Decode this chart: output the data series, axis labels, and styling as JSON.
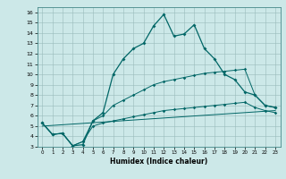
{
  "xlabel": "Humidex (Indice chaleur)",
  "bg_color": "#cce8e8",
  "line_color": "#006666",
  "xlim": [
    -0.5,
    23.5
  ],
  "ylim": [
    3,
    16.5
  ],
  "xticks": [
    0,
    1,
    2,
    3,
    4,
    5,
    6,
    7,
    8,
    9,
    10,
    11,
    12,
    13,
    14,
    15,
    16,
    17,
    18,
    19,
    20,
    21,
    22,
    23
  ],
  "yticks": [
    3,
    4,
    5,
    6,
    7,
    8,
    9,
    10,
    11,
    12,
    13,
    14,
    15,
    16
  ],
  "main_line_x": [
    0,
    1,
    2,
    3,
    4,
    5,
    6,
    7,
    8,
    9,
    10,
    11,
    12,
    13,
    14,
    15,
    16,
    17,
    18,
    19,
    20,
    21,
    22,
    23
  ],
  "main_line_y": [
    5.3,
    4.2,
    4.3,
    3.1,
    3.2,
    5.5,
    6.3,
    10.0,
    11.5,
    12.5,
    13.0,
    14.7,
    15.8,
    13.7,
    13.9,
    14.8,
    12.5,
    11.5,
    10.0,
    9.5,
    8.3,
    8.0,
    7.0,
    6.8
  ],
  "upper_line_x": [
    0,
    1,
    2,
    3,
    4,
    5,
    6,
    7,
    8,
    9,
    10,
    11,
    12,
    13,
    14,
    15,
    16,
    17,
    18,
    19,
    20,
    21,
    22,
    23
  ],
  "upper_line_y": [
    5.3,
    4.2,
    4.3,
    3.1,
    3.5,
    5.5,
    6.0,
    7.0,
    7.5,
    8.0,
    8.5,
    9.0,
    9.3,
    9.5,
    9.7,
    9.9,
    10.1,
    10.2,
    10.3,
    10.4,
    10.5,
    8.0,
    7.0,
    6.8
  ],
  "lower_line_x": [
    0,
    1,
    2,
    3,
    4,
    5,
    6,
    7,
    8,
    9,
    10,
    11,
    12,
    13,
    14,
    15,
    16,
    17,
    18,
    19,
    20,
    21,
    22,
    23
  ],
  "lower_line_y": [
    5.3,
    4.2,
    4.3,
    3.1,
    3.5,
    5.0,
    5.3,
    5.5,
    5.7,
    5.9,
    6.1,
    6.3,
    6.5,
    6.6,
    6.7,
    6.8,
    6.9,
    7.0,
    7.1,
    7.2,
    7.3,
    6.8,
    6.5,
    6.3
  ],
  "trend_line_x": [
    0,
    23
  ],
  "trend_line_y": [
    5.0,
    6.5
  ]
}
